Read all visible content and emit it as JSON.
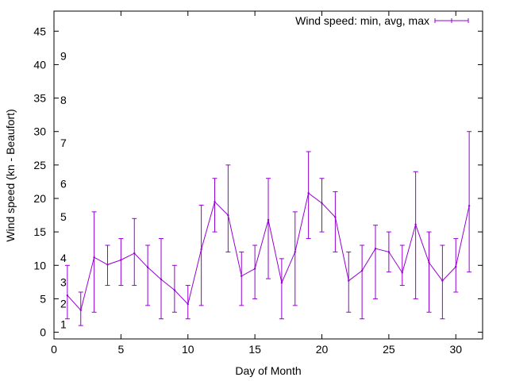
{
  "chart_data": {
    "type": "line",
    "title": "",
    "xlabel": "Day of Month",
    "ylabel": "Wind speed (kn - Beaufort)",
    "xlim": [
      0,
      32
    ],
    "ylim": [
      -1,
      48
    ],
    "x_ticks": [
      0,
      5,
      10,
      15,
      20,
      25,
      30
    ],
    "y_ticks": [
      0,
      5,
      10,
      15,
      20,
      25,
      30,
      35,
      40,
      45
    ],
    "grid": false,
    "legend_position": "top-right",
    "beaufort_labels": [
      {
        "label": "1",
        "value": 1.2
      },
      {
        "label": "2",
        "value": 4.3
      },
      {
        "label": "3",
        "value": 7.5
      },
      {
        "label": "4",
        "value": 11.1
      },
      {
        "label": "5",
        "value": 17.3
      },
      {
        "label": "6",
        "value": 22.2
      },
      {
        "label": "7",
        "value": 28.3
      },
      {
        "label": "8",
        "value": 34.7
      },
      {
        "label": "9",
        "value": 41.3
      }
    ],
    "series": [
      {
        "name": "Wind speed: min, avg, max",
        "color": "#9400d3",
        "x": [
          1,
          2,
          3,
          4,
          5,
          6,
          7,
          8,
          9,
          10,
          11,
          12,
          13,
          14,
          15,
          16,
          17,
          18,
          19,
          20,
          21,
          22,
          23,
          24,
          25,
          26,
          27,
          28,
          29,
          30,
          31
        ],
        "avg": [
          5.5,
          3.3,
          11.2,
          10.1,
          10.8,
          11.8,
          9.7,
          7.9,
          6.3,
          4.2,
          12.4,
          19.5,
          17.5,
          8.4,
          9.5,
          16.8,
          7.4,
          12.0,
          20.8,
          19.3,
          17.2,
          7.7,
          9.2,
          12.5,
          12.0,
          8.9,
          16.1,
          10.4,
          7.7,
          9.8,
          18.9
        ],
        "min": [
          2,
          1,
          3,
          7,
          7,
          7,
          4,
          2,
          3,
          2,
          4,
          15,
          12,
          4,
          5,
          8,
          2,
          4,
          14,
          15,
          12,
          3,
          2,
          5,
          9,
          7,
          5,
          3,
          2,
          6,
          9
        ],
        "max": [
          10,
          6,
          18,
          13,
          14,
          17,
          13,
          14,
          10,
          7,
          19,
          23,
          25,
          12,
          13,
          23,
          11,
          18,
          27,
          23,
          21,
          12,
          13,
          16,
          15,
          13,
          24,
          15,
          13,
          14,
          30
        ]
      }
    ]
  }
}
